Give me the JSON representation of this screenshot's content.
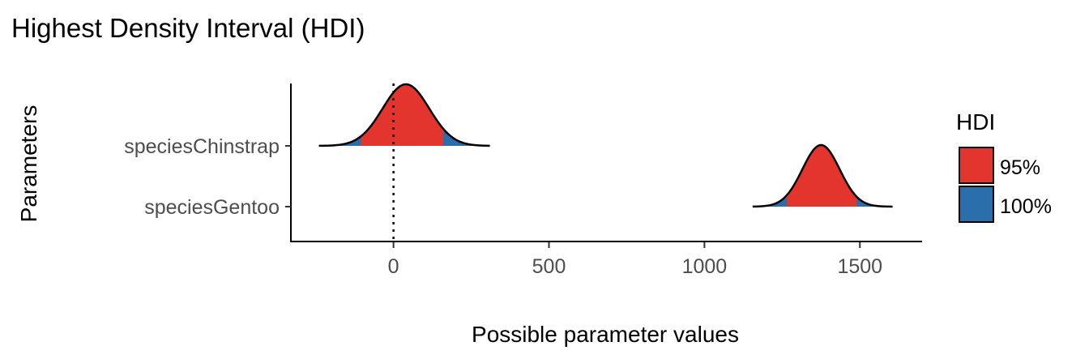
{
  "chart_data": {
    "type": "area",
    "title": "Highest Density Interval (HDI)",
    "xlabel": "Possible parameter values",
    "ylabel": "Parameters",
    "xlim": [
      -330,
      1700
    ],
    "x_ticks": [
      0,
      500,
      1000,
      1500
    ],
    "reference_line_x": 0,
    "categories": [
      "speciesChinstrap",
      "speciesGentoo"
    ],
    "legend": {
      "title": "HDI",
      "placement": "right",
      "entries": [
        {
          "label": "95%",
          "color": "#E3352E"
        },
        {
          "label": "100%",
          "color": "#2A6EAB"
        }
      ]
    },
    "series": [
      {
        "category": "speciesChinstrap",
        "mean": 40,
        "sd": 75,
        "range": [
          -240,
          310
        ],
        "hdi_95": [
          -105,
          160
        ]
      },
      {
        "category": "speciesGentoo",
        "mean": 1375,
        "sd": 60,
        "range": [
          1155,
          1605
        ],
        "hdi_95": [
          1265,
          1490
        ]
      }
    ],
    "grid": false
  }
}
